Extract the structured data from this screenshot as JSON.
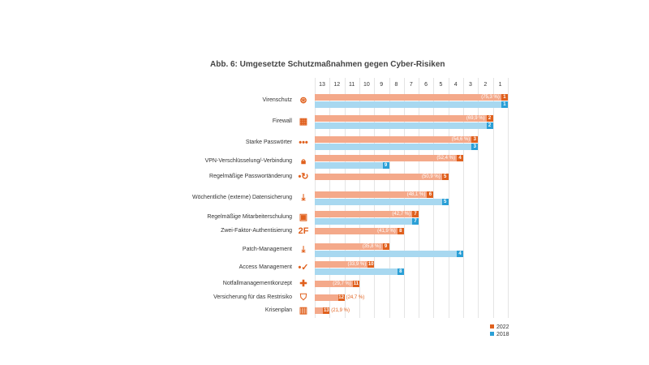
{
  "chart_data": {
    "type": "bar",
    "orientation": "horizontal",
    "title": "Abb. 6: Umgesetzte Schutzmaßnahmen gegen Cyber-Risiken",
    "axis_ticks": [
      "13",
      "12",
      "11",
      "10",
      "9",
      "8",
      "7",
      "6",
      "5",
      "4",
      "3",
      "2",
      "1"
    ],
    "grid": true,
    "legend_position": "bottom-right",
    "colors": {
      "2022_bar": "#f4a98a",
      "2022_badge": "#e0601d",
      "2018_bar": "#a8d8f0",
      "2018_badge": "#2a9fd6",
      "icon": "#e0601d"
    },
    "categories": [
      {
        "label": "Virenschutz",
        "icon": "virus-icon",
        "rank_2022": 1,
        "pct_2022": "(75,3 %)",
        "rank_2018": 1
      },
      {
        "label": "Firewall",
        "icon": "firewall-icon",
        "rank_2022": 2,
        "pct_2022": "(69,9 %)",
        "rank_2018": 2
      },
      {
        "label": "Starke Passwörter",
        "icon": "password-dots-icon",
        "rank_2022": 3,
        "pct_2022": "(54,6 %)",
        "rank_2018": 3
      },
      {
        "label": "VPN-Verschlüsselung/-Verbindung",
        "icon": "lock-icon",
        "rank_2022": 4,
        "pct_2022": "(52,4 %)",
        "rank_2018": 9
      },
      {
        "label": "Regelmäßige Passwortänderung",
        "icon": "password-refresh-icon",
        "rank_2022": 5,
        "pct_2022": "(50,9 %)",
        "rank_2018": null
      },
      {
        "label": "Wöchentliche (externe) Datensicherung",
        "icon": "download-icon",
        "rank_2022": 6,
        "pct_2022": "(48,1 %)",
        "rank_2018": 5
      },
      {
        "label": "Regelmäßige Mitarbeiterschulung",
        "icon": "training-icon",
        "rank_2022": 7,
        "pct_2022": "(42,7 %)",
        "rank_2018": 7
      },
      {
        "label": "Zwei-Faktor-Authentisierung",
        "icon": "two-factor-icon",
        "icon_text": "2F",
        "rank_2022": 8,
        "pct_2022": "(41,9 %)",
        "rank_2018": null
      },
      {
        "label": "Patch-Management",
        "icon": "patch-icon",
        "rank_2022": 9,
        "pct_2022": "(35,8 %)",
        "rank_2018": 4
      },
      {
        "label": "Access Management",
        "icon": "access-icon",
        "rank_2022": 10,
        "pct_2022": "(33,9 %)",
        "rank_2018": 8
      },
      {
        "label": "Notfallmanagementkonzept",
        "icon": "first-aid-icon",
        "rank_2022": 11,
        "pct_2022": "(29,7 %)",
        "rank_2018": null
      },
      {
        "label": "Versicherung für das Restrisiko",
        "icon": "shield-icon",
        "rank_2022": 12,
        "pct_2022": "(24,7 %)",
        "rank_2018": null
      },
      {
        "label": "Krisenplan",
        "icon": "map-icon",
        "rank_2022": 13,
        "pct_2022": "(21,9 %)",
        "rank_2018": null
      }
    ],
    "series": [
      {
        "name": "2022"
      },
      {
        "name": "2018"
      }
    ]
  }
}
